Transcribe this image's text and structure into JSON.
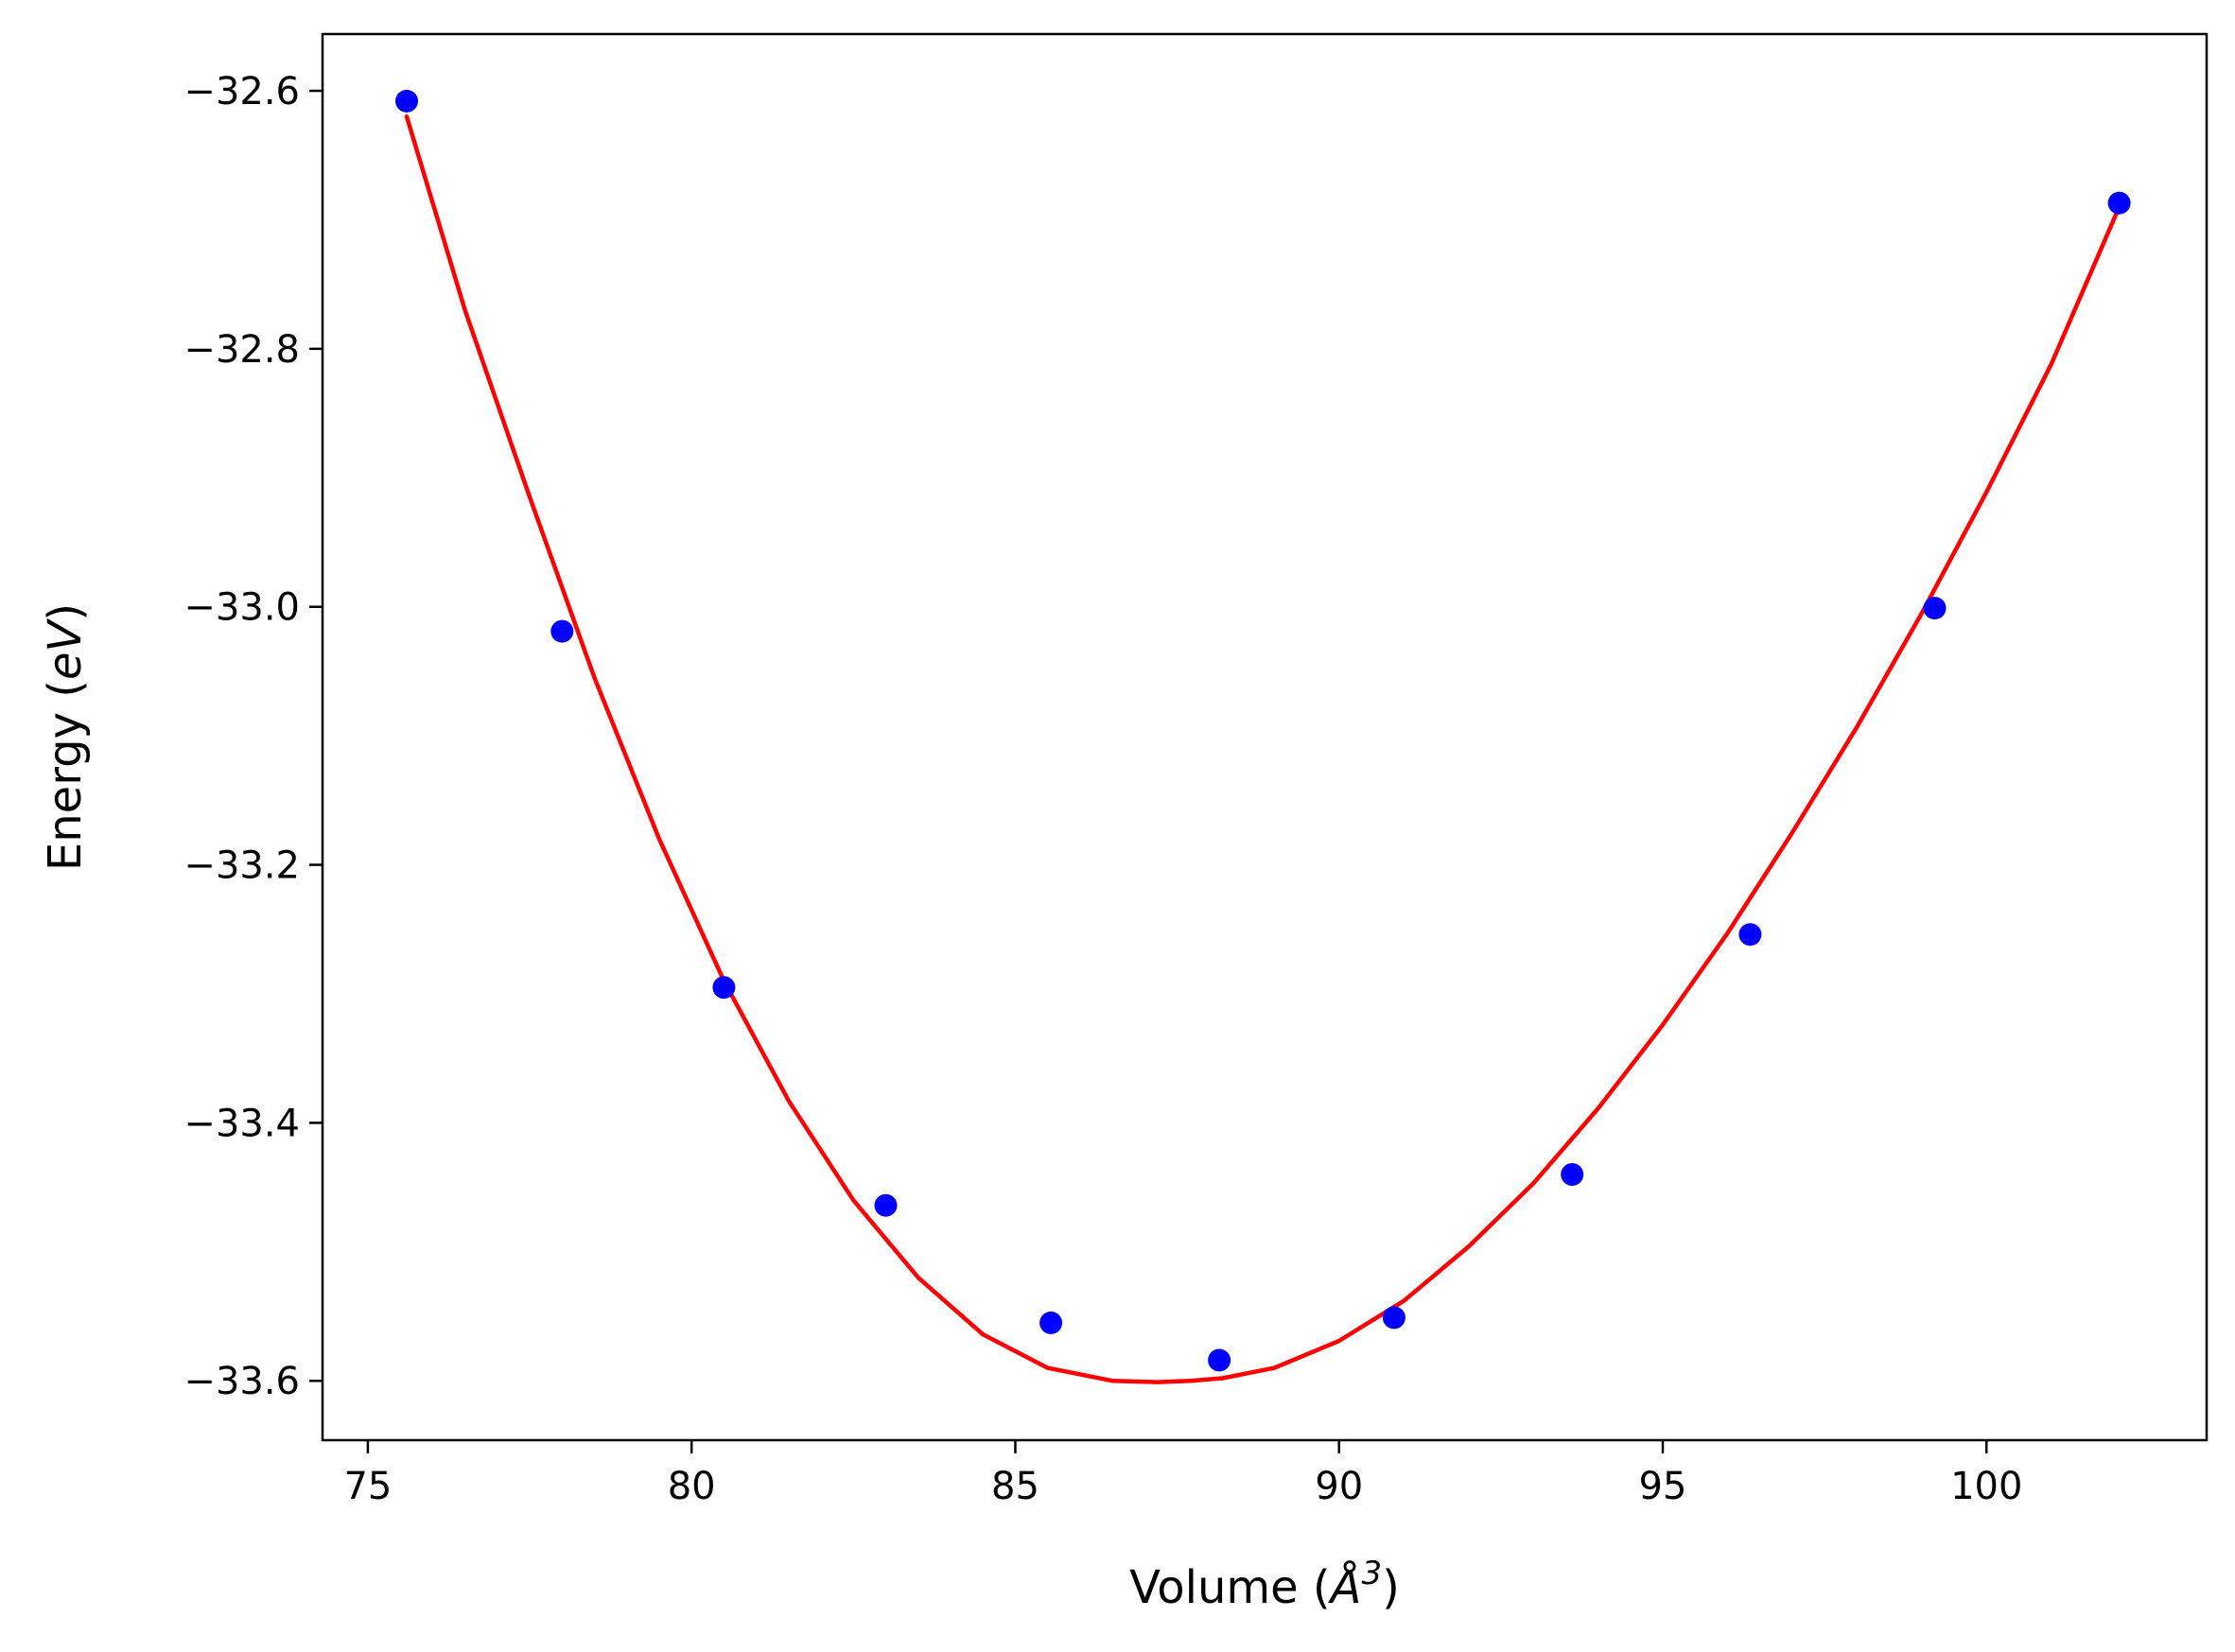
{
  "chart_data": {
    "type": "scatter",
    "title": "",
    "xlabel": {
      "prefix": "Volume (",
      "symbol": "Å",
      "sup": "3",
      "suffix": ")"
    },
    "ylabel": {
      "prefix": "Energy (",
      "symbol": "eV",
      "suffix": ")"
    },
    "xlim": [
      74.3,
      103.4
    ],
    "ylim": [
      -33.646,
      -32.556
    ],
    "xticks": [
      75,
      80,
      85,
      90,
      95,
      100
    ],
    "xtick_labels": [
      "75",
      "80",
      "85",
      "90",
      "95",
      "100"
    ],
    "yticks": [
      -32.6,
      -32.8,
      -33.0,
      -33.2,
      -33.4,
      -33.6
    ],
    "ytick_labels": [
      "−32.6",
      "−32.8",
      "−33.0",
      "−33.2",
      "−33.4",
      "−33.6"
    ],
    "grid": false,
    "legend": null,
    "series": [
      {
        "kind": "markers",
        "color": "#0000ff",
        "x": [
          75.6,
          78.0,
          80.5,
          83.0,
          85.55,
          88.15,
          90.85,
          93.6,
          96.35,
          99.2,
          102.05
        ],
        "y": [
          -32.608,
          -33.019,
          -33.295,
          -33.464,
          -33.555,
          -33.584,
          -33.551,
          -33.44,
          -33.254,
          -33.001,
          -32.687
        ]
      },
      {
        "kind": "fit-line",
        "color": "#ff0000",
        "x": [
          75.6,
          76.5,
          77.5,
          78.5,
          79.5,
          80.5,
          81.5,
          82.5,
          83.5,
          84.5,
          85.5,
          86.5,
          87.2,
          87.7,
          88.2,
          89.0,
          90.0,
          91.0,
          92.0,
          93.0,
          94.0,
          95.0,
          96.0,
          97.0,
          98.0,
          99.0,
          100.0,
          101.0,
          102.05
        ],
        "y": [
          -32.62,
          -32.77,
          -32.915,
          -33.055,
          -33.18,
          -33.29,
          -33.383,
          -33.46,
          -33.52,
          -33.564,
          -33.59,
          -33.6,
          -33.601,
          -33.6,
          -33.598,
          -33.59,
          -33.569,
          -33.538,
          -33.496,
          -33.447,
          -33.389,
          -33.324,
          -33.253,
          -33.175,
          -33.093,
          -33.005,
          -32.911,
          -32.812,
          -32.69
        ]
      }
    ]
  }
}
